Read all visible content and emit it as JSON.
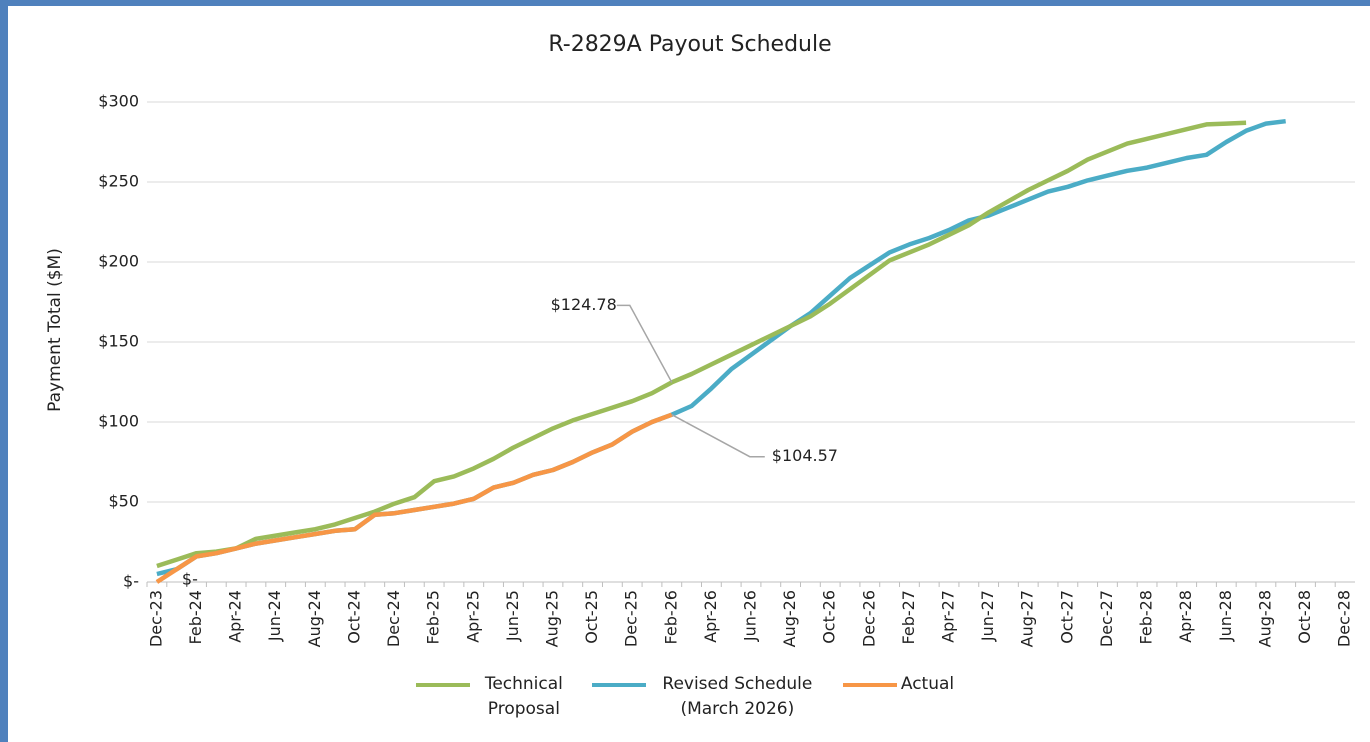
{
  "chart_data": {
    "type": "line",
    "title": "R-2829A Payout Schedule",
    "y_label": "Payment Total ($M)",
    "categories": [
      "Dec-23",
      null,
      "Feb-24",
      null,
      "Apr-24",
      null,
      "Jun-24",
      null,
      "Aug-24",
      null,
      "Oct-24",
      null,
      "Dec-24",
      null,
      "Feb-25",
      null,
      "Apr-25",
      null,
      "Jun-25",
      null,
      "Aug-25",
      null,
      "Oct-25",
      null,
      "Dec-25",
      null,
      "Feb-26",
      null,
      "Apr-26",
      null,
      "Jun-26",
      null,
      "Aug-26",
      null,
      "Oct-26",
      null,
      "Dec-26",
      null,
      "Feb-27",
      null,
      "Apr-27",
      null,
      "Jun-27",
      null,
      "Aug-27",
      null,
      "Oct-27",
      null,
      "Dec-27",
      null,
      "Feb-28",
      null,
      "Apr-28",
      null,
      "Jun-28",
      null,
      "Aug-28",
      null,
      "Oct-28",
      null,
      "Dec-28"
    ],
    "series": [
      {
        "name": "Technical Proposal",
        "color": "#9bbb59",
        "values": [
          10,
          14,
          18,
          19,
          21,
          27,
          29,
          31,
          33,
          36,
          40,
          44,
          49,
          53,
          63,
          66,
          71,
          77,
          84,
          90,
          96,
          101,
          105,
          109,
          113,
          118,
          124.78,
          130,
          136,
          142,
          148,
          154,
          160,
          166,
          174,
          183,
          192,
          201,
          206,
          211,
          217,
          223,
          231,
          238,
          245,
          251,
          257,
          264,
          269,
          274,
          277,
          280,
          283,
          286,
          286.5,
          287,
          null,
          null,
          null,
          null,
          null
        ],
        "value_labels": [
          null,
          null,
          null,
          null,
          null,
          null,
          null,
          null,
          null,
          null,
          null,
          null,
          null,
          null,
          null,
          null,
          null,
          null,
          null,
          null,
          null,
          null,
          null,
          null,
          null,
          null,
          "$124.78",
          null,
          null,
          null,
          null,
          null,
          null,
          null,
          null,
          null,
          null,
          null,
          null,
          null,
          null,
          null,
          null,
          null,
          null,
          null,
          null,
          null,
          null,
          null,
          null,
          null,
          null,
          null,
          null,
          null,
          null,
          null,
          null,
          null,
          null
        ]
      },
      {
        "name": "Revised Schedule (March 2026)",
        "color": "#4bacc6",
        "values": [
          5,
          8,
          16,
          18,
          21,
          24,
          26,
          28,
          30,
          32,
          33,
          42,
          43,
          45,
          47,
          49,
          52,
          59,
          62,
          67,
          70,
          75,
          81,
          86,
          94,
          100,
          104.57,
          110,
          121,
          133,
          142,
          151,
          160,
          168,
          179,
          190,
          198,
          206,
          211,
          215,
          220,
          226,
          229,
          234,
          239,
          244,
          247,
          251,
          254,
          257,
          259,
          262,
          265,
          267,
          275,
          282,
          286.5,
          288,
          null,
          null,
          null
        ]
      },
      {
        "name": "Actual",
        "color": "#f79646",
        "values": [
          0,
          8,
          16,
          18,
          21,
          24,
          26,
          28,
          30,
          32,
          33,
          42,
          43,
          45,
          47,
          49,
          52,
          59,
          62,
          67,
          70,
          75,
          81,
          86,
          94,
          100,
          104.57,
          null,
          null,
          null,
          null,
          null,
          null,
          null,
          null,
          null,
          null,
          null,
          null,
          null,
          null,
          null,
          null,
          null,
          null,
          null,
          null,
          null,
          null,
          null,
          null,
          null,
          null,
          null,
          null,
          null,
          null,
          null,
          null,
          null,
          null
        ],
        "value_labels": [
          "$-",
          null,
          null,
          null,
          null,
          null,
          null,
          null,
          null,
          null,
          null,
          null,
          null,
          null,
          null,
          null,
          null,
          null,
          null,
          null,
          null,
          null,
          null,
          null,
          null,
          null,
          "$104.57",
          null,
          null,
          null,
          null,
          null,
          null,
          null,
          null,
          null,
          null,
          null,
          null,
          null,
          null,
          null,
          null,
          null,
          null,
          null,
          null,
          null,
          null,
          null,
          null,
          null,
          null,
          null,
          null,
          null,
          null,
          null,
          null,
          null,
          null
        ]
      }
    ],
    "ylim": [
      0,
      300
    ],
    "yticks": [
      {
        "value": 0,
        "label": "$-"
      },
      {
        "value": 50,
        "label": "$50"
      },
      {
        "value": 100,
        "label": "$100"
      },
      {
        "value": 150,
        "label": "$150"
      },
      {
        "value": 200,
        "label": "$200"
      },
      {
        "value": 250,
        "label": "$250"
      },
      {
        "value": 300,
        "label": "$300"
      }
    ],
    "grid": true,
    "legend": "bottom"
  }
}
